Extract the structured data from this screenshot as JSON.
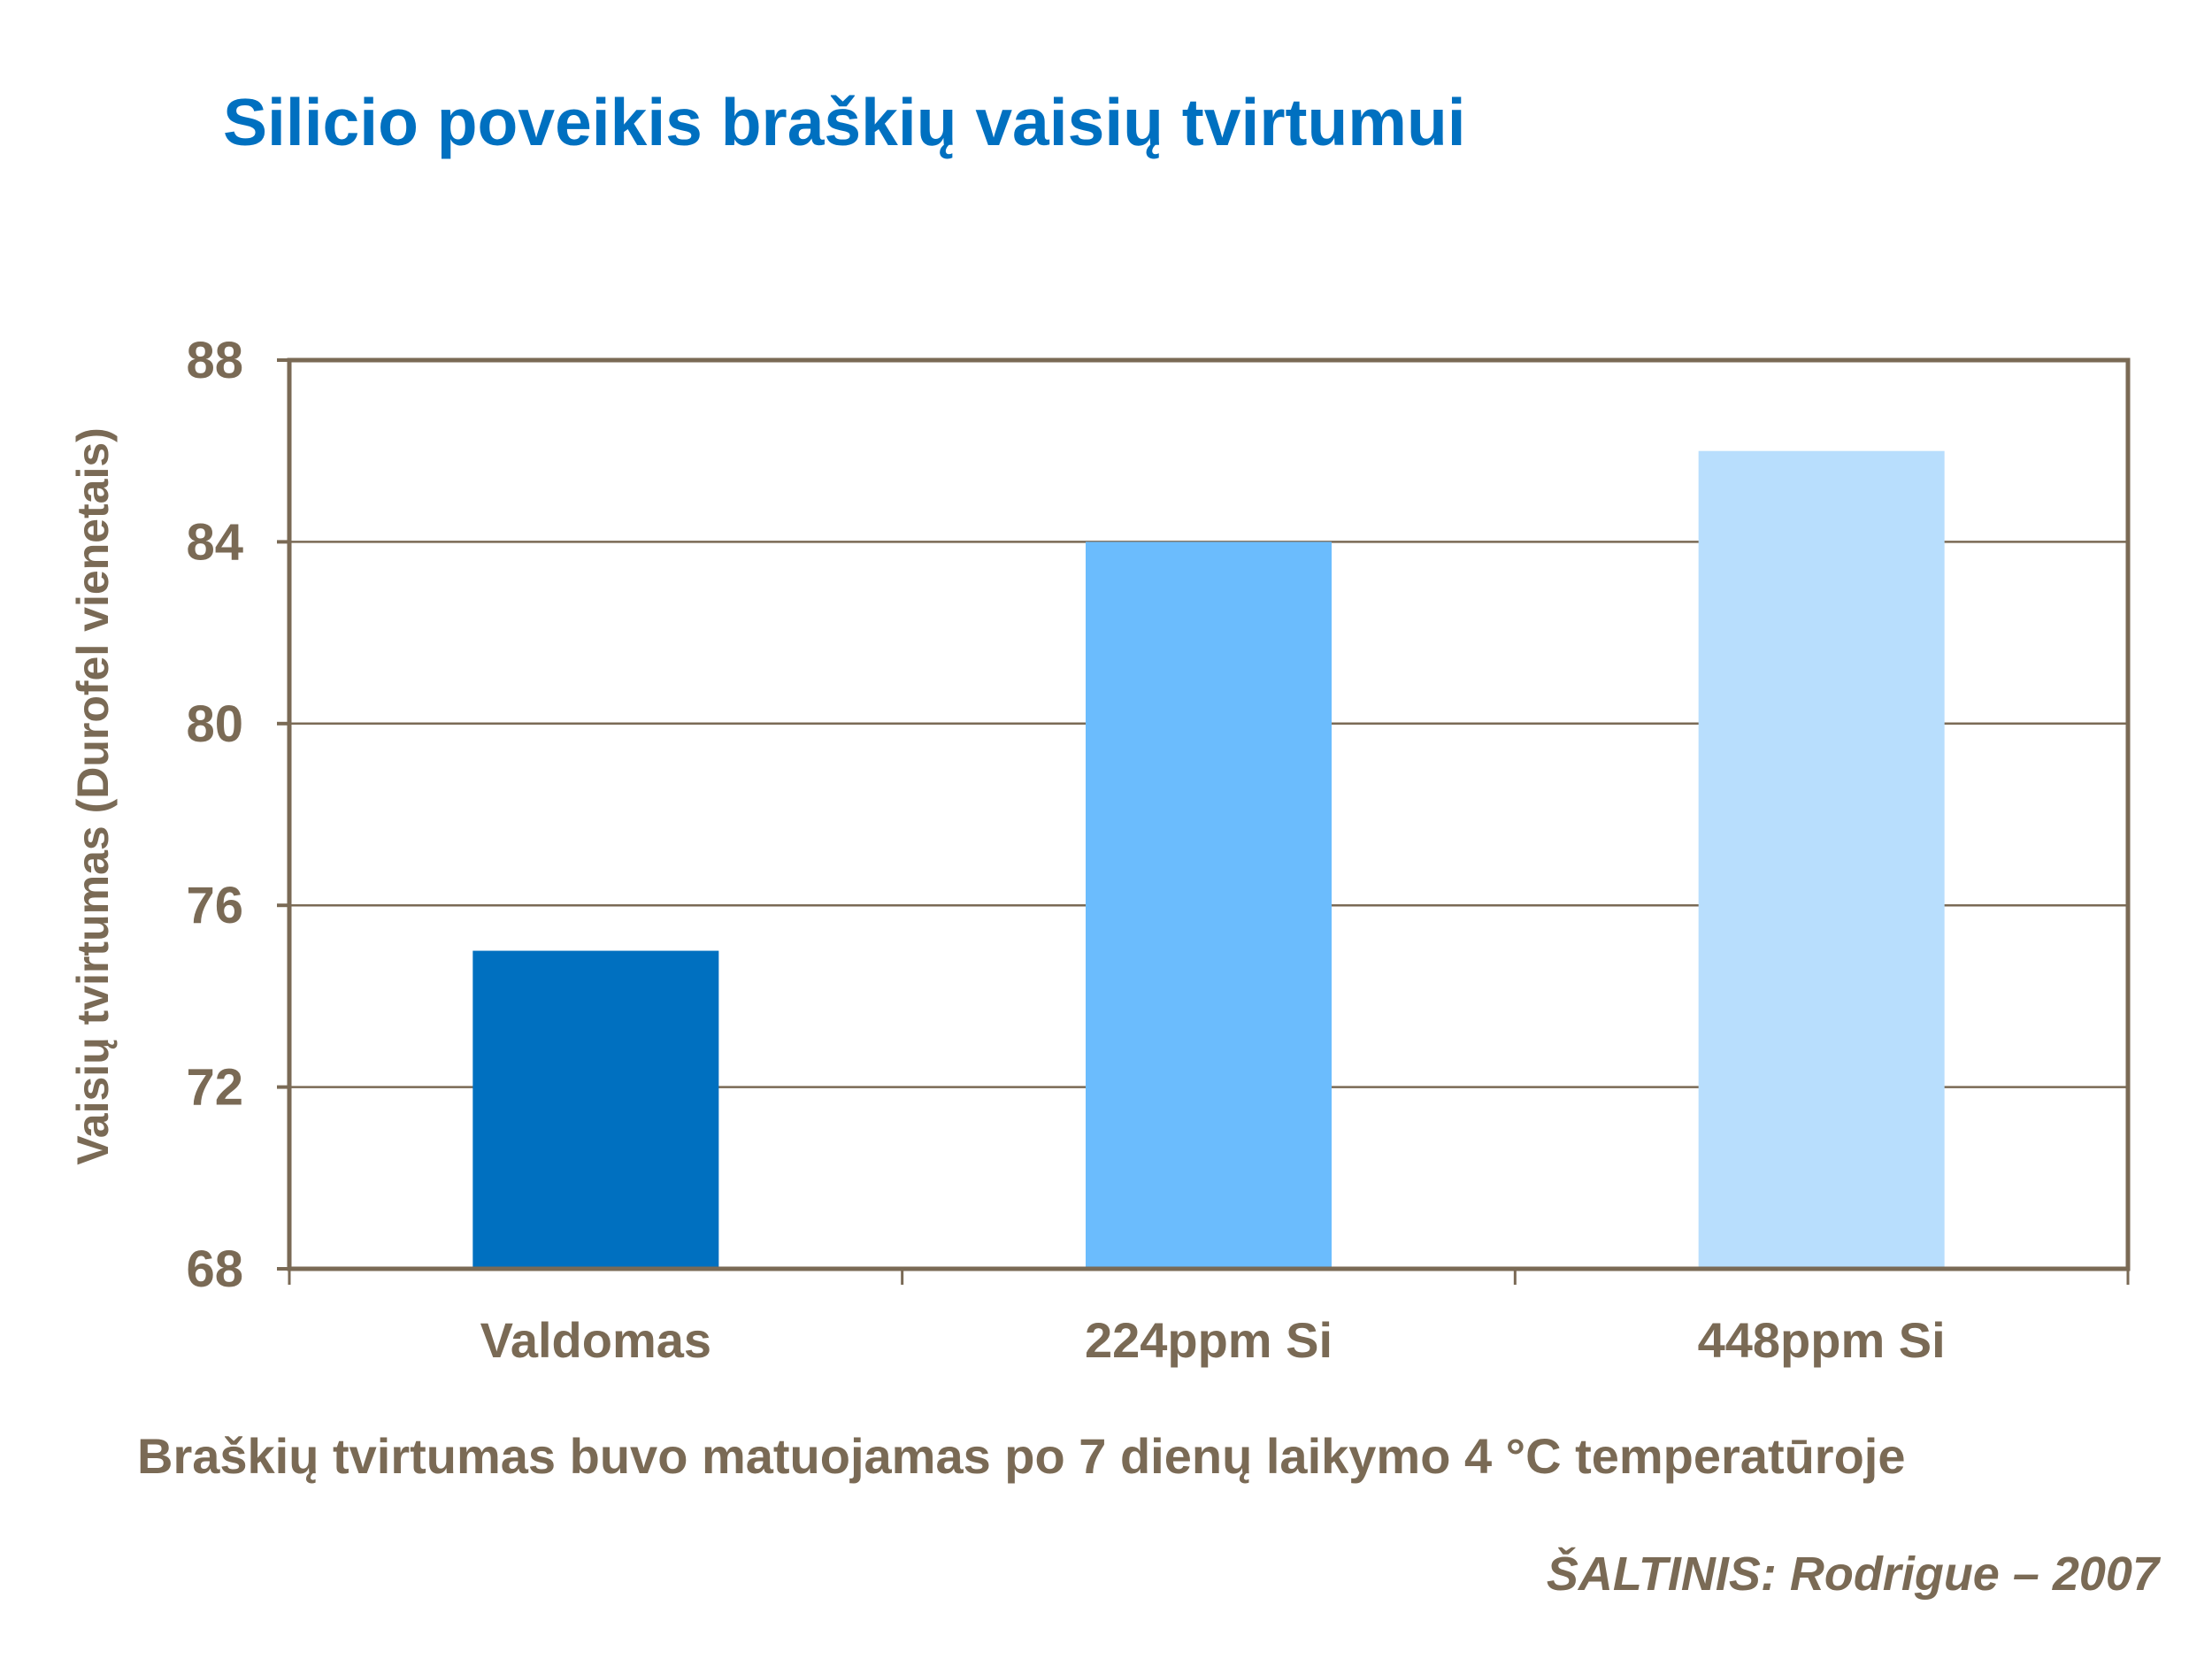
{
  "title": "Silicio poveikis braškių vaisių tvirtumui",
  "note": "Braškių tvirtumas buvo matuojamas po 7 dienų laikymo 4 °C temperatūroje",
  "source": "ŠALTINIS: Rodrigue – 2007",
  "colors": {
    "text": "#7a6a55",
    "title": "#0070c0",
    "frame": "#7a6a55",
    "bars": [
      "#0070c0",
      "#6bbcfd",
      "#b8defd"
    ]
  },
  "chart_data": {
    "type": "bar",
    "title": "Silicio poveikis braškių vaisių tvirtumui",
    "categories": [
      "Valdomas",
      "224ppm Si",
      "448ppm Si"
    ],
    "values": [
      75,
      84,
      86
    ],
    "xlabel": "",
    "ylabel": "Vaisių tvirtumas (Durofel vienetais)",
    "ylim": [
      68,
      88
    ],
    "yticks": [
      68,
      72,
      76,
      80,
      84,
      88
    ],
    "grid": true,
    "legend": "none"
  }
}
